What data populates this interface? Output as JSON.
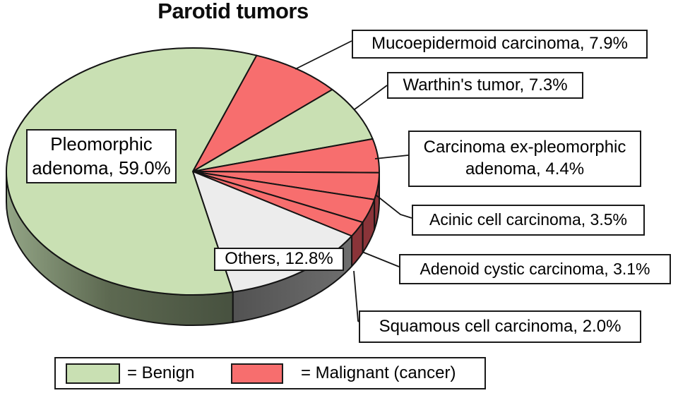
{
  "title": "Parotid tumors",
  "colors": {
    "benign": "#c9e0b3",
    "malignant": "#f76e6e",
    "others": "#ececec",
    "outline": "#141414",
    "wall_malignant": "#8a3439",
    "wall_benign_light": "#93a586",
    "wall_benign_mid": "#5d6951",
    "wall_benign_dark": "#47513f",
    "wall_others_left": "#525252",
    "wall_others_right": "#6e6e6e",
    "background": "#ffffff"
  },
  "chart_data": {
    "type": "pie",
    "title": "Parotid tumors",
    "unit": "%",
    "style": "3d-pie",
    "start_angle_clockwise_from_top_deg": 20,
    "slices": [
      {
        "label": "Mucoepidermoid carcinoma",
        "value": 7.9,
        "category": "malignant"
      },
      {
        "label": "Warthin's tumor",
        "value": 7.3,
        "category": "benign"
      },
      {
        "label": "Carcinoma ex-pleomorphic adenoma",
        "value": 4.4,
        "category": "malignant"
      },
      {
        "label": "Acinic cell carcinoma",
        "value": 3.5,
        "category": "malignant"
      },
      {
        "label": "Adenoid cystic carcinoma",
        "value": 3.1,
        "category": "malignant"
      },
      {
        "label": "Squamous cell carcinoma",
        "value": 2.0,
        "category": "malignant"
      },
      {
        "label": "Others",
        "value": 12.8,
        "category": "others"
      },
      {
        "label": "Pleomorphic adenoma",
        "value": 59.0,
        "category": "benign"
      }
    ],
    "legend": [
      {
        "label": "= Benign",
        "category": "benign"
      },
      {
        "label": "= Malignant (cancer)",
        "category": "malignant"
      }
    ],
    "legend_position": "bottom"
  },
  "callouts": [
    {
      "name": "mucoepidermoid-carcinoma",
      "text": "Mucoepidermoid carcinoma, 7.9%"
    },
    {
      "name": "warthins-tumor",
      "text": "Warthin's tumor, 7.3%"
    },
    {
      "name": "carcinoma-ex-pleomorphic-adenoma",
      "text": "Carcinoma ex-pleomorphic\nadenoma, 4.4%"
    },
    {
      "name": "acinic-cell-carcinoma",
      "text": "Acinic cell carcinoma, 3.5%"
    },
    {
      "name": "adenoid-cystic-carcinoma",
      "text": "Adenoid cystic carcinoma, 3.1%"
    },
    {
      "name": "squamous-cell-carcinoma",
      "text": "Squamous cell carcinoma, 2.0%"
    },
    {
      "name": "pleomorphic-adenoma",
      "text": "Pleomorphic\nadenoma, 59.0%"
    },
    {
      "name": "others",
      "text": "Others, 12.8%"
    }
  ]
}
